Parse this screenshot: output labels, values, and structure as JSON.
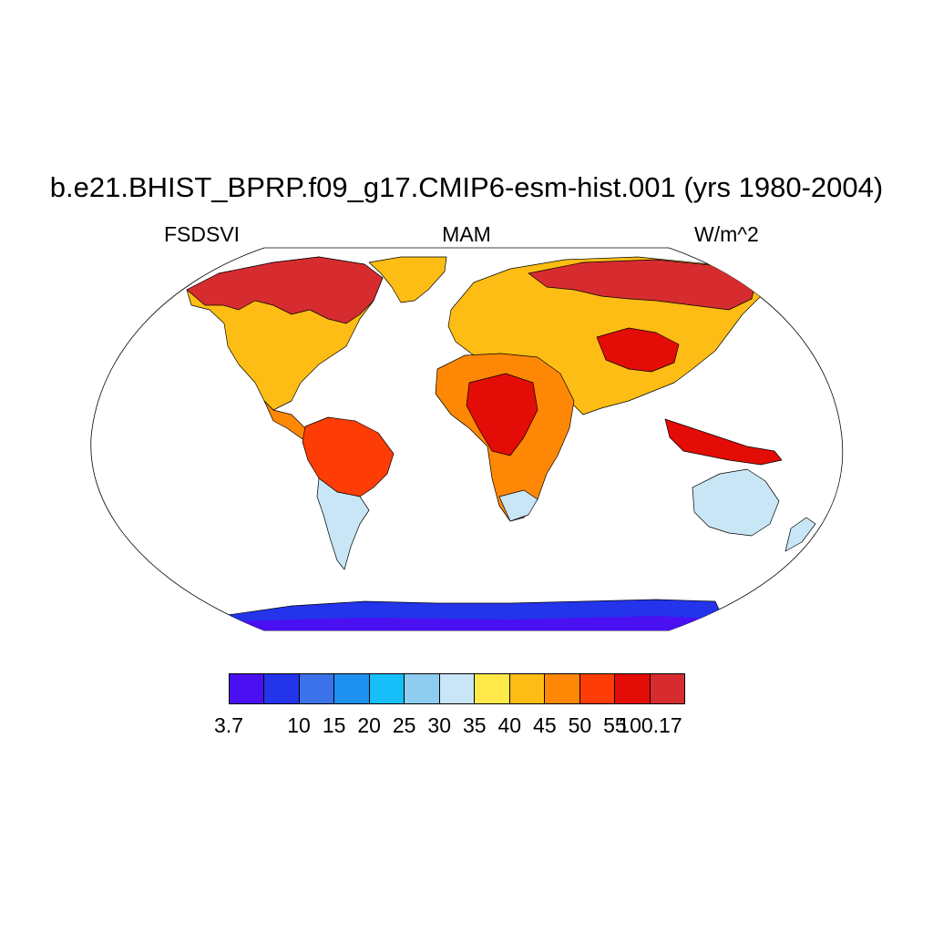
{
  "figure": {
    "title": "b.e21.BHIST_BPRP.f09_g17.CMIP6-esm-hist.001 (yrs 1980-2004)",
    "left_label": "FSDSVI",
    "center_label": "MAM",
    "right_label": "W/m^2"
  },
  "colorbar": {
    "colors": [
      "#4a10f2",
      "#2334eb",
      "#3b72ea",
      "#1e90f0",
      "#16bff7",
      "#8ecdf0",
      "#c8e6f6",
      "#ffe84a",
      "#fdbd14",
      "#fe8705",
      "#fe3c06",
      "#e40c06",
      "#d62c30"
    ],
    "labels": [
      "3.7",
      "10",
      "15",
      "20",
      "25",
      "30",
      "35",
      "40",
      "45",
      "50",
      "55",
      "100.17"
    ]
  },
  "map": {
    "projection": "Robinson",
    "land_colors": {
      "arctic": "#d62c30",
      "hot": "#e40c06",
      "very_warm": "#fe3c06",
      "warm": "#fe8705",
      "mild": "#fdbd14",
      "cool": "#ffe84a",
      "cold": "#c8e6f6",
      "colder": "#8ecdf0",
      "antarctic_edge": "#3b72ea",
      "antarctic": "#2334eb",
      "antarctic_core": "#4a10f2"
    }
  }
}
